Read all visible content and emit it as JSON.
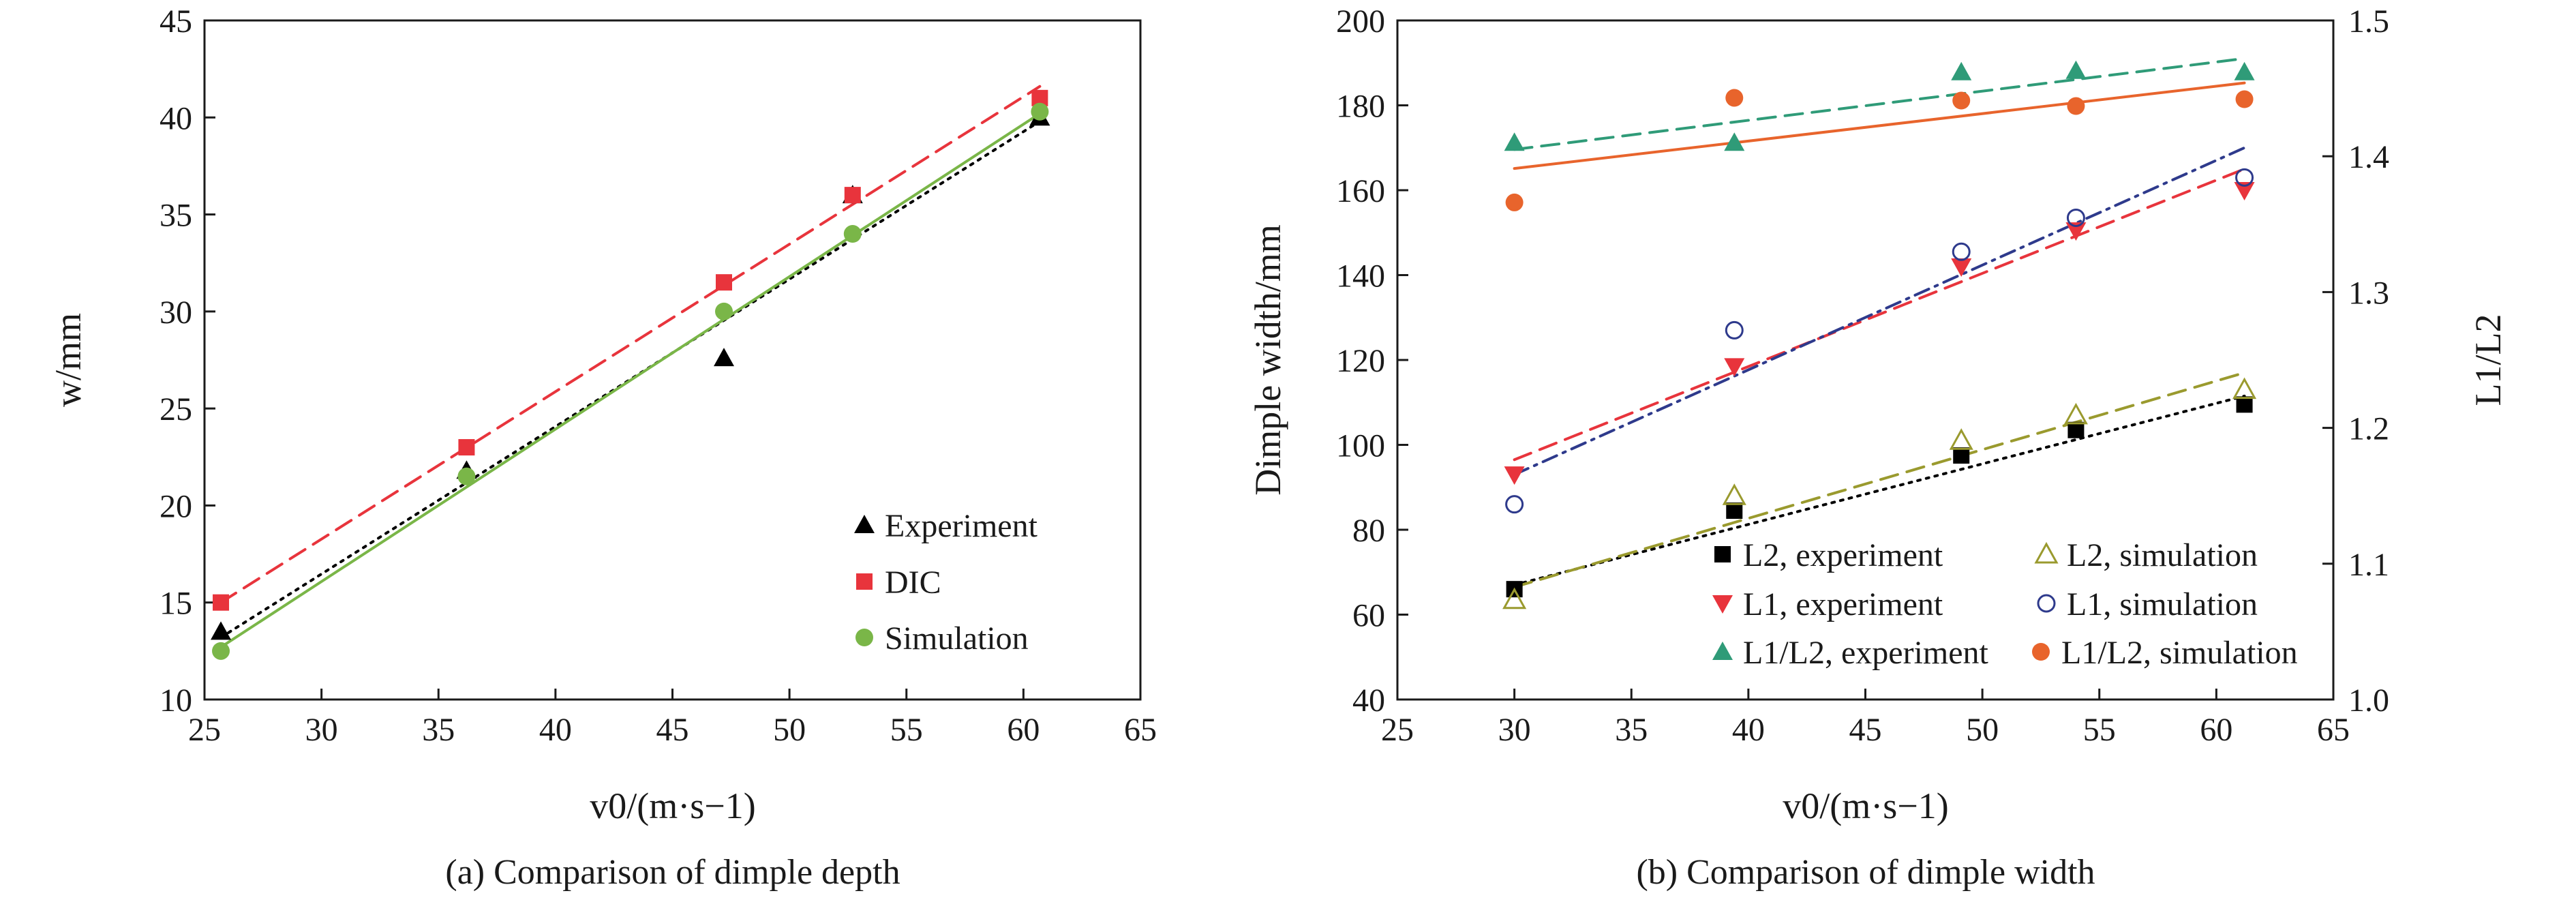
{
  "chart_data": [
    {
      "type": "scatter",
      "subtitle": "(a) Comparison of dimple depth",
      "xlabel": "v0/(m·s−1)",
      "ylabel": "w/mm",
      "xlim": [
        25,
        65
      ],
      "ylim": [
        10,
        45
      ],
      "x_ticks": [
        "25",
        "30",
        "35",
        "40",
        "45",
        "50",
        "55",
        "60",
        "65"
      ],
      "y_ticks": [
        "10",
        "15",
        "20",
        "25",
        "30",
        "35",
        "40",
        "45"
      ],
      "grid": false,
      "legend_position": "bottom-right",
      "series": [
        {
          "name": "Experiment",
          "marker": "triangle",
          "color": "#000000",
          "line_style": "dotted",
          "x": [
            25.7,
            36.2,
            47.2,
            52.7,
            60.7
          ],
          "y": [
            13.5,
            21.8,
            27.6,
            36.0,
            40.0
          ],
          "fit": [
            [
              25.7,
              13.2
            ],
            [
              60.7,
              39.8
            ]
          ]
        },
        {
          "name": "DIC",
          "marker": "square",
          "color": "#e8343c",
          "line_style": "dashed",
          "x": [
            25.7,
            36.2,
            47.2,
            52.7,
            60.7
          ],
          "y": [
            15.0,
            23.0,
            31.5,
            36.0,
            41.0
          ],
          "fit": [
            [
              25.7,
              15.0
            ],
            [
              60.7,
              41.6
            ]
          ]
        },
        {
          "name": "Simulation",
          "marker": "circle",
          "color": "#7ab648",
          "line_style": "solid",
          "x": [
            25.7,
            36.2,
            47.2,
            52.7,
            60.7
          ],
          "y": [
            12.5,
            21.5,
            30.0,
            34.0,
            40.3
          ],
          "fit": [
            [
              25.7,
              12.7
            ],
            [
              60.7,
              40.2
            ]
          ]
        }
      ]
    },
    {
      "type": "scatter",
      "subtitle": "(b) Comparison of dimple width",
      "xlabel": "v0/(m·s−1)",
      "ylabel": "Dimple width/mm",
      "y2label": "L1/L2",
      "xlim": [
        25,
        65
      ],
      "ylim": [
        40,
        200
      ],
      "y2lim": [
        1.0,
        1.5
      ],
      "x_ticks": [
        "25",
        "30",
        "35",
        "40",
        "45",
        "50",
        "55",
        "60",
        "65"
      ],
      "y_ticks": [
        "40",
        "60",
        "80",
        "100",
        "120",
        "140",
        "160",
        "180",
        "200"
      ],
      "y2_ticks": [
        "1.0",
        "1.1",
        "1.2",
        "1.3",
        "1.4",
        "1.5"
      ],
      "grid": false,
      "legend_position": "bottom-right",
      "series": [
        {
          "name": "L2, experiment",
          "marker": "square",
          "color": "#000000",
          "axis": "left",
          "line_style": "dotted",
          "x": [
            30.0,
            39.4,
            49.1,
            54.0,
            61.2
          ],
          "y": [
            66,
            84.5,
            97.5,
            103.5,
            109.5
          ],
          "fit": [
            [
              30.0,
              67
            ],
            [
              61.2,
              111.5
            ]
          ]
        },
        {
          "name": "L2, simulation",
          "marker": "triangle-open",
          "color": "#9a9a2e",
          "axis": "left",
          "line_style": "dashed",
          "x": [
            30.0,
            39.4,
            49.1,
            54.0,
            61.2
          ],
          "y": [
            63.5,
            88,
            101,
            107,
            113
          ],
          "fit": [
            [
              30.0,
              66.5
            ],
            [
              61.2,
              117
            ]
          ]
        },
        {
          "name": "L1, experiment",
          "marker": "triangle-down",
          "color": "#e8343c",
          "axis": "left",
          "line_style": "dashed",
          "x": [
            30.0,
            39.4,
            49.1,
            54.0,
            61.2
          ],
          "y": [
            93,
            118.5,
            142,
            150.5,
            160
          ],
          "fit": [
            [
              30.0,
              96.5
            ],
            [
              61.2,
              165
            ]
          ]
        },
        {
          "name": "L1, simulation",
          "marker": "circle-open",
          "color": "#2e3a8c",
          "axis": "left",
          "line_style": "dashdot",
          "x": [
            30.0,
            39.4,
            49.1,
            54.0,
            61.2
          ],
          "y": [
            86,
            127,
            145.5,
            153.5,
            163
          ],
          "fit": [
            [
              30.0,
              93
            ],
            [
              61.2,
              170
            ]
          ]
        },
        {
          "name": "L1/L2, experiment",
          "marker": "triangle",
          "color": "#2f9b78",
          "axis": "right",
          "line_style": "dashed",
          "x": [
            30.0,
            39.4,
            49.1,
            54.0,
            61.2
          ],
          "y": [
            1.41,
            1.41,
            1.462,
            1.463,
            1.462
          ],
          "fit": [
            [
              30.0,
              1.405
            ],
            [
              61.2,
              1.472
            ]
          ]
        },
        {
          "name": "L1/L2, simulation",
          "marker": "circle",
          "color": "#e8642c",
          "axis": "right",
          "line_style": "solid",
          "x": [
            30.0,
            39.4,
            49.1,
            54.0,
            61.2
          ],
          "y": [
            1.366,
            1.443,
            1.441,
            1.437,
            1.442
          ],
          "fit": [
            [
              30.0,
              1.391
            ],
            [
              61.2,
              1.454
            ]
          ]
        }
      ]
    }
  ]
}
